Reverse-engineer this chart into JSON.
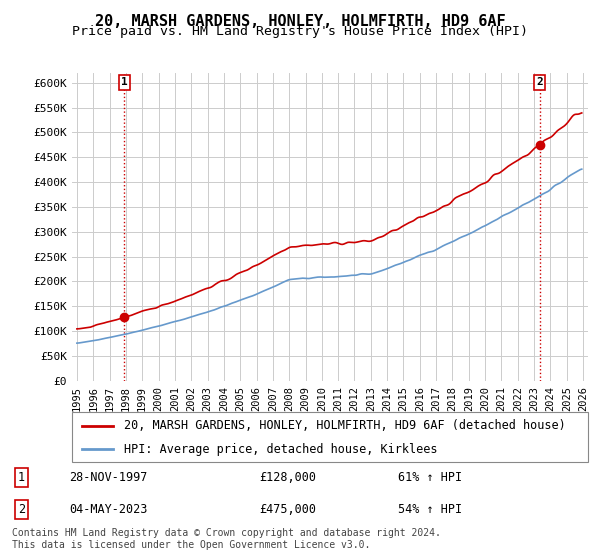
{
  "title": "20, MARSH GARDENS, HONLEY, HOLMFIRTH, HD9 6AF",
  "subtitle": "Price paid vs. HM Land Registry's House Price Index (HPI)",
  "ylabel": "",
  "xlabel": "",
  "ylim": [
    0,
    620000
  ],
  "yticks": [
    0,
    50000,
    100000,
    150000,
    200000,
    250000,
    300000,
    350000,
    400000,
    450000,
    500000,
    550000,
    600000
  ],
  "ytick_labels": [
    "£0",
    "£50K",
    "£100K",
    "£150K",
    "£200K",
    "£250K",
    "£300K",
    "£350K",
    "£400K",
    "£450K",
    "£500K",
    "£550K",
    "£600K"
  ],
  "x_start_year": 1995,
  "x_end_year": 2026,
  "sale1_date": 1997.91,
  "sale1_price": 128000,
  "sale1_label": "1",
  "sale1_text": "28-NOV-1997",
  "sale1_amount": "£128,000",
  "sale1_hpi": "61% ↑ HPI",
  "sale2_date": 2023.34,
  "sale2_price": 475000,
  "sale2_label": "2",
  "sale2_text": "04-MAY-2023",
  "sale2_amount": "£475,000",
  "sale2_hpi": "54% ↑ HPI",
  "red_line_color": "#cc0000",
  "blue_line_color": "#6699cc",
  "marker_color": "#cc0000",
  "dashed_color": "#cc0000",
  "grid_color": "#cccccc",
  "bg_color": "#ffffff",
  "legend_line1": "20, MARSH GARDENS, HONLEY, HOLMFIRTH, HD9 6AF (detached house)",
  "legend_line2": "HPI: Average price, detached house, Kirklees",
  "copyright": "Contains HM Land Registry data © Crown copyright and database right 2024.\nThis data is licensed under the Open Government Licence v3.0.",
  "title_fontsize": 11,
  "subtitle_fontsize": 9.5,
  "tick_fontsize": 8,
  "legend_fontsize": 8.5,
  "table_fontsize": 8.5,
  "copyright_fontsize": 7
}
